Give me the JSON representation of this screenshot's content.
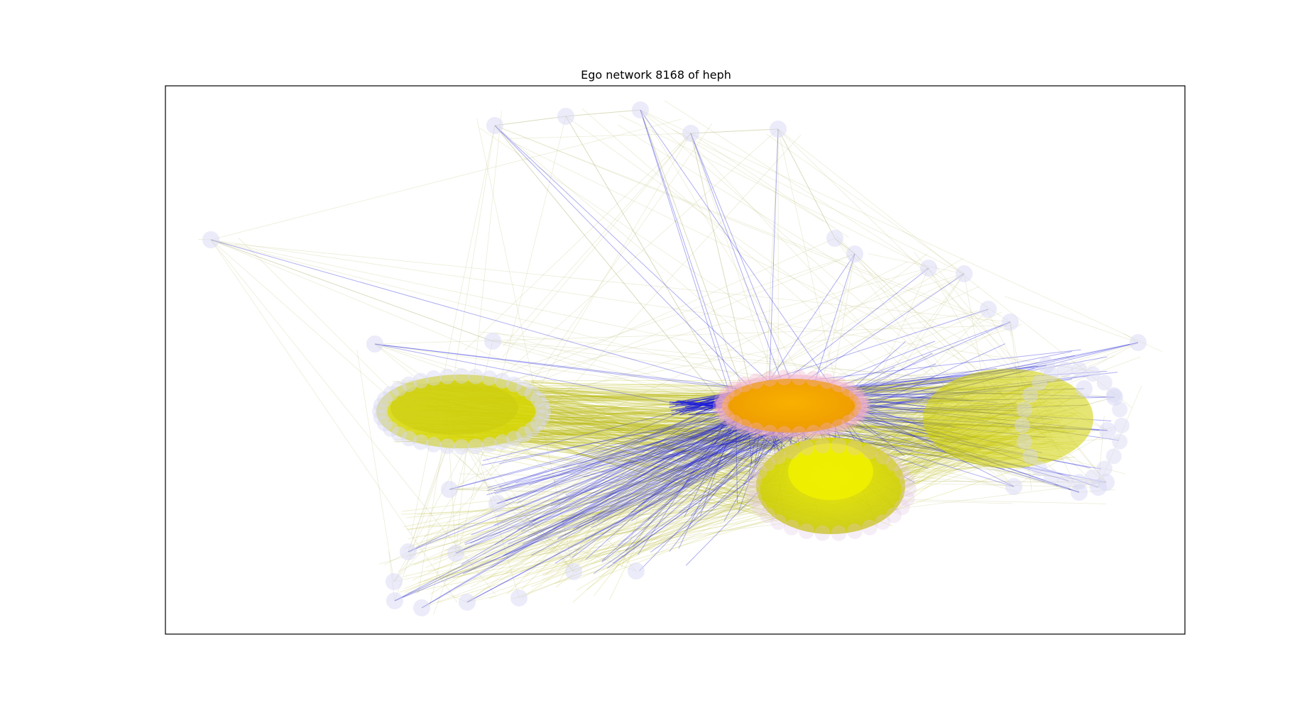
{
  "figure": {
    "title": "Ego network 8168 of heph"
  },
  "legend": {
    "ego_node_color": "#f5a000",
    "alter_cluster_color": "#d8d800",
    "peripheral_node_color": "#d8d8f5",
    "ego_edge_color": "#1a1ad8",
    "alter_edge_color": "#b8b800",
    "ego_halo_color": "#f0b0c8"
  },
  "network": {
    "kind": "ego-network",
    "ego_id": "8168",
    "graph_name": "heph"
  }
}
